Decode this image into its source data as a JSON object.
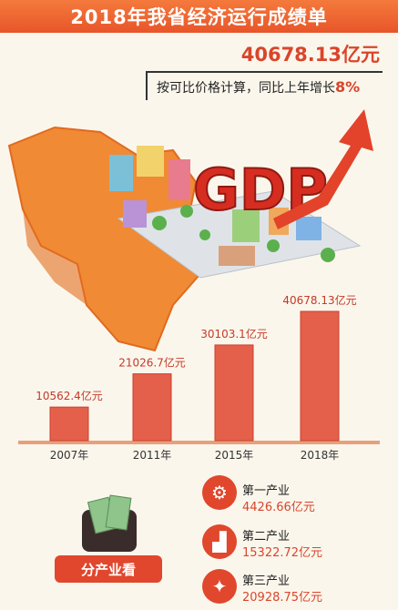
{
  "header": {
    "title": "2018年我省经济运行成绩单"
  },
  "summary": {
    "total": "40678.13亿元",
    "growth_prefix": "按可比价格计算，同比上年增长",
    "growth_pct": "8%"
  },
  "illustration": {
    "gdp_text": "GDP"
  },
  "chart_data": {
    "type": "bar",
    "categories": [
      "2007年",
      "2011年",
      "2015年",
      "2018年"
    ],
    "values": [
      10562.4,
      21026.7,
      30103.1,
      40678.13
    ],
    "value_labels": [
      "10562.4亿元",
      "21026.7亿元",
      "30103.1亿元",
      "40678.13亿元"
    ],
    "unit": "亿元",
    "ylim": [
      0,
      40678.13
    ],
    "grid": false,
    "colors": {
      "bar": "#e5604a",
      "bar_edge": "#c9412d",
      "axis": "#e8a07a"
    }
  },
  "sectors": {
    "badge": "分产业看",
    "items": [
      {
        "name": "第一产业",
        "value": "4426.66亿元",
        "icon": "gear-icon"
      },
      {
        "name": "第二产业",
        "value": "15322.72亿元",
        "icon": "factory-icon"
      },
      {
        "name": "第三产业",
        "value": "20928.75亿元",
        "icon": "service-icon"
      }
    ]
  }
}
